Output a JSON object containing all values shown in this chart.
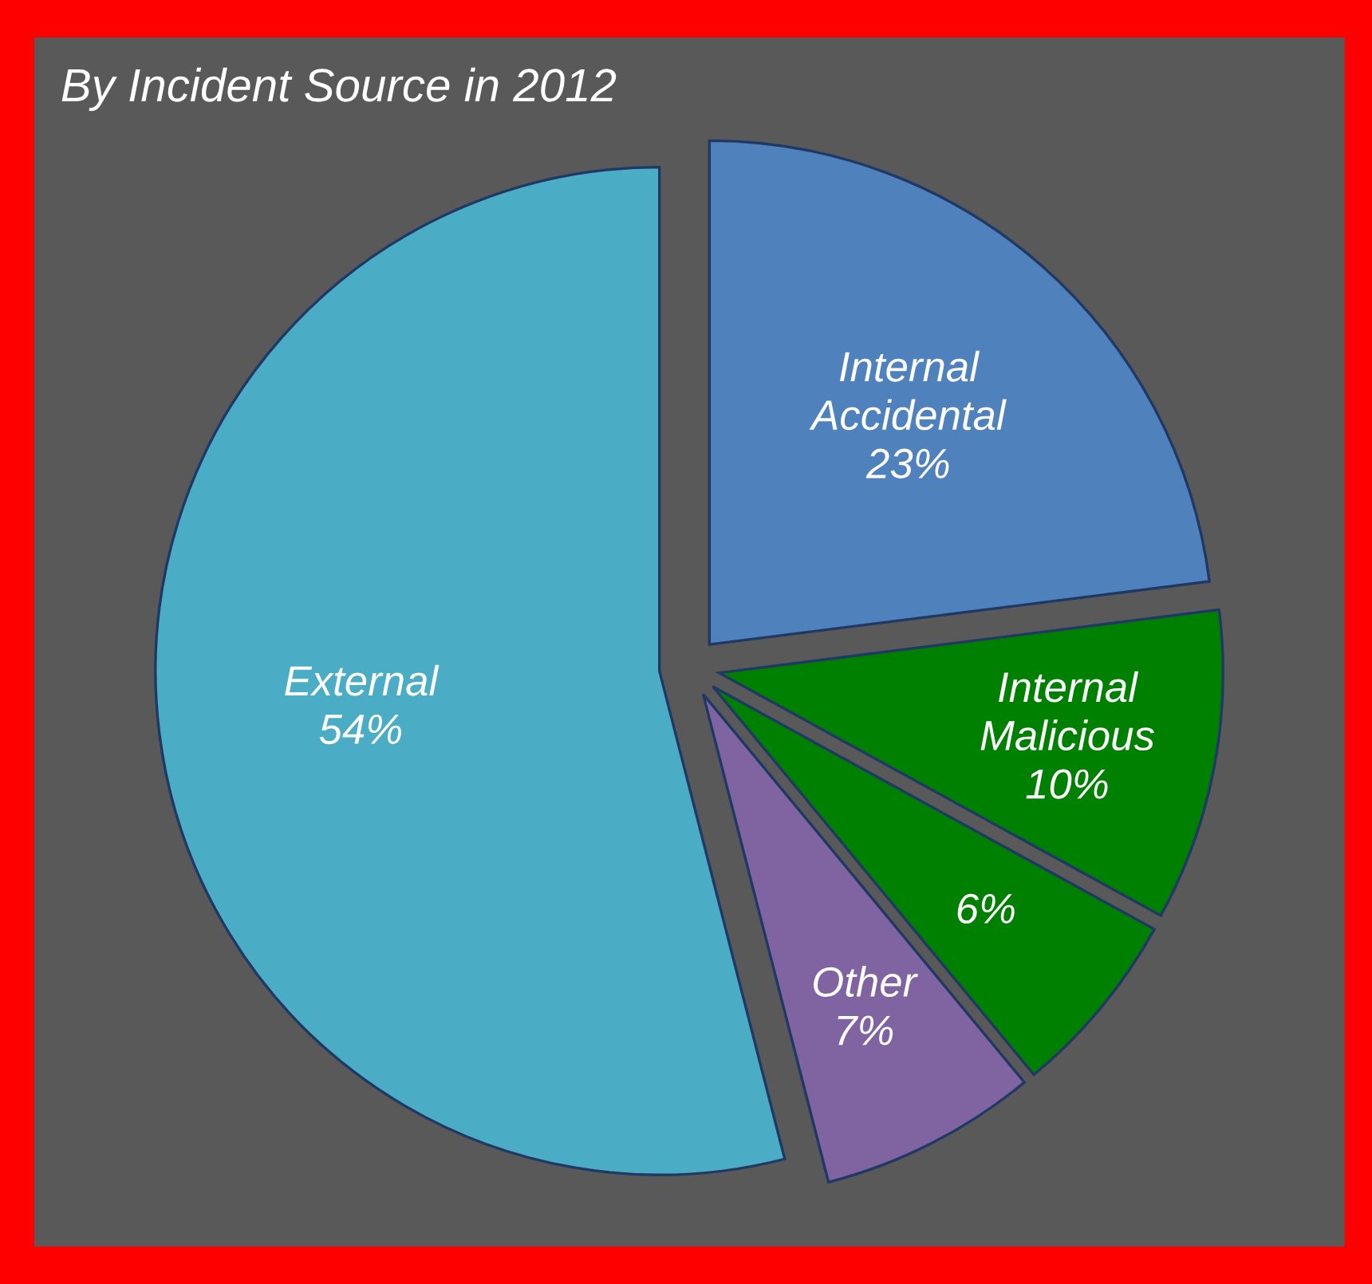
{
  "chart_data": {
    "type": "pie",
    "title": "By Incident Source in 2012",
    "categories": [
      "Internal Accidental",
      "Internal Malicious",
      null,
      "Other",
      "External"
    ],
    "values": [
      23,
      10,
      6,
      7,
      54
    ],
    "value_labels": [
      "23%",
      "10%",
      "6%",
      "7%",
      "54%"
    ],
    "colors": [
      "#4f81bd",
      "#008000",
      "#008000",
      "#8064a2",
      "#4bacc6"
    ],
    "legend": false
  }
}
